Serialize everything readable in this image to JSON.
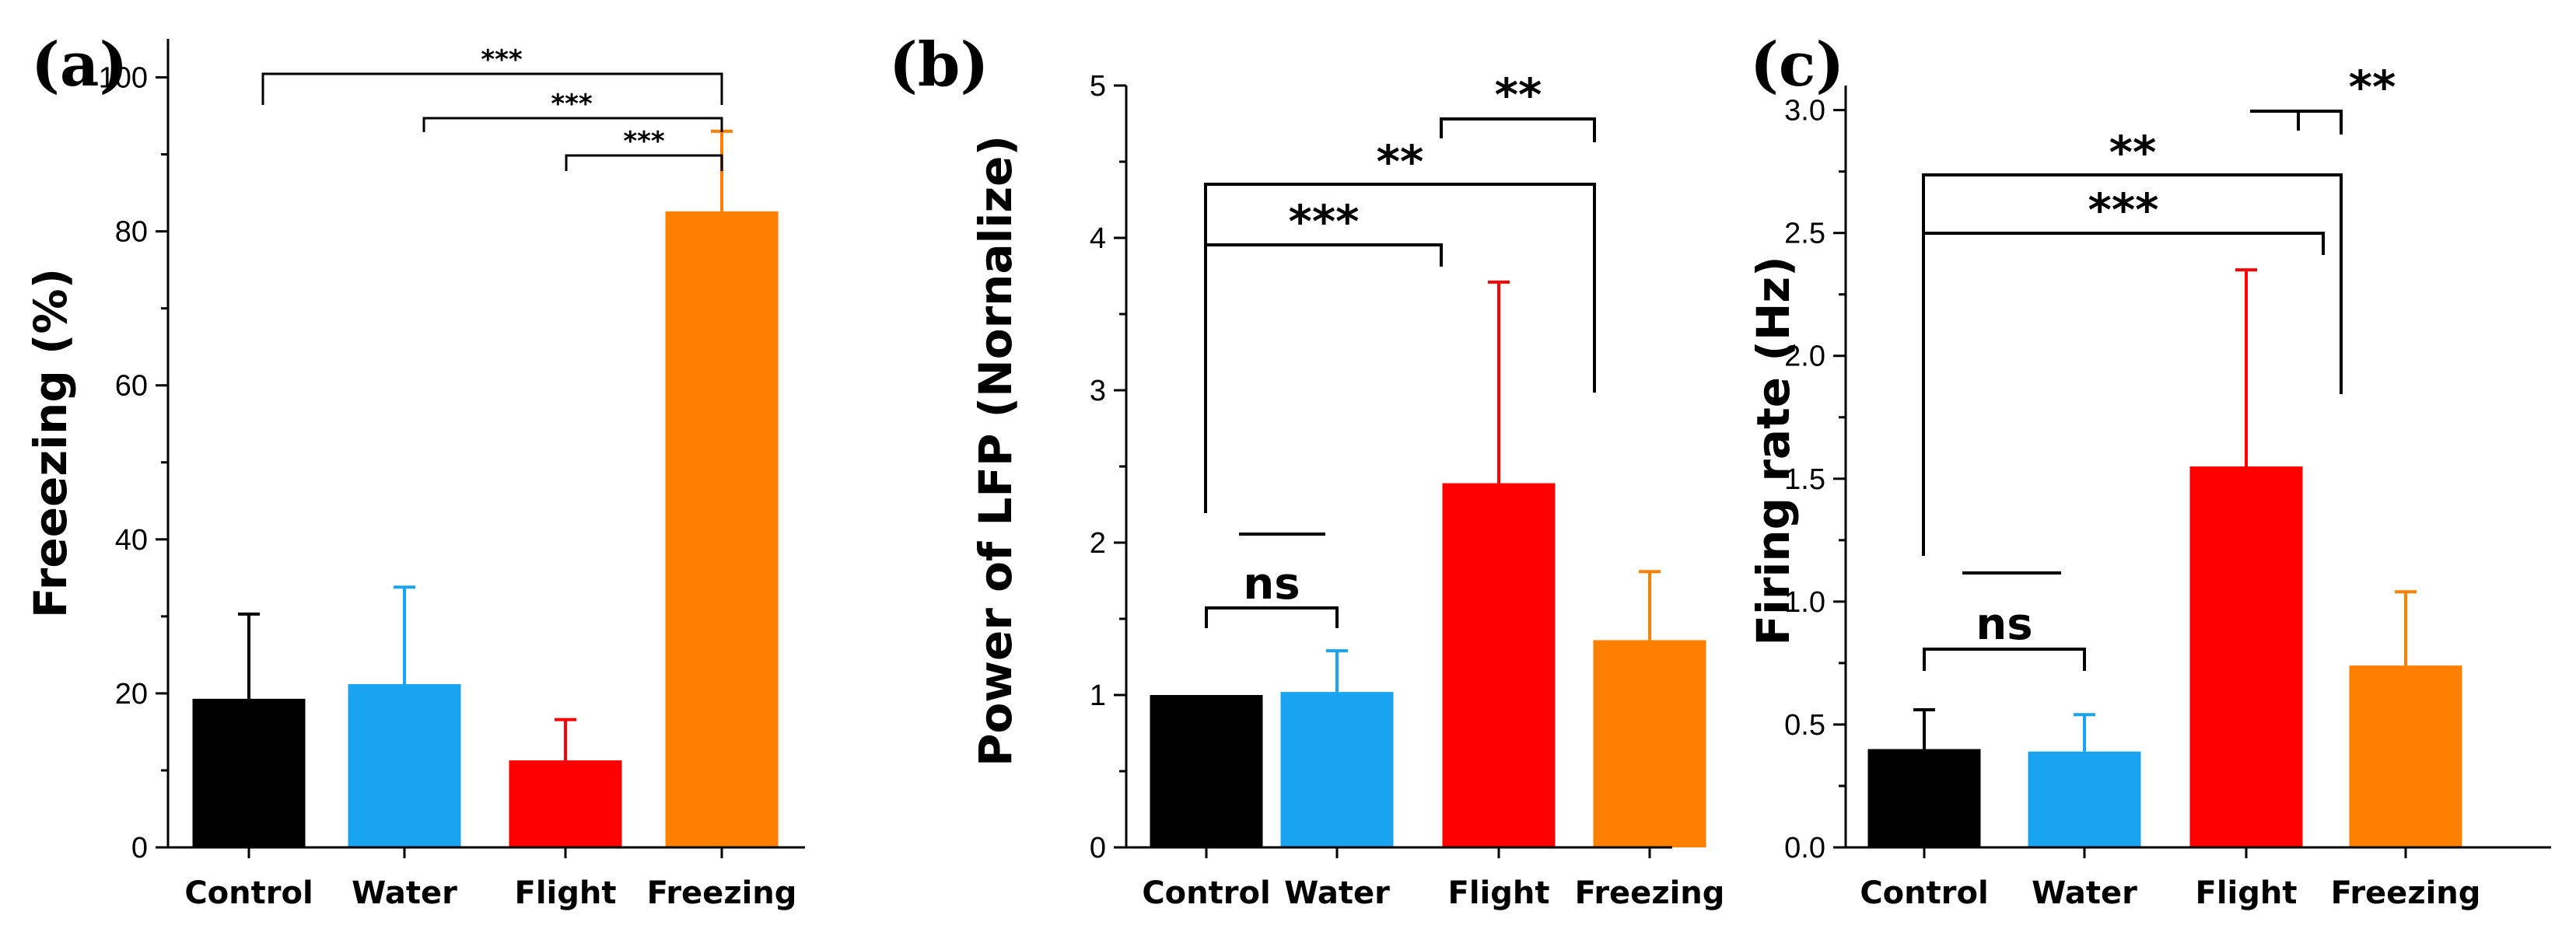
{
  "chart_data": [
    {
      "type": "bar",
      "panel_label": "(a)",
      "ylabel": "Freeezing (%)",
      "ylim": [
        0,
        105
      ],
      "yticks": [
        0,
        20,
        40,
        60,
        80,
        100
      ],
      "ytick_labels": [
        "0",
        "20",
        "40",
        "60",
        "80",
        "100"
      ],
      "categories": [
        "Control",
        "Water",
        "Flight",
        "Freezing"
      ],
      "values": [
        19.3,
        21.2,
        11.3,
        82.6
      ],
      "errors": [
        11.0,
        12.6,
        5.3,
        10.4
      ],
      "colors": [
        "#000000",
        "#1aa3f0",
        "#ff0000",
        "#ff8000"
      ],
      "significance": [
        {
          "from": "Control",
          "to": "Freezing",
          "label": "***"
        },
        {
          "from": "Water",
          "to": "Freezing",
          "label": "***"
        },
        {
          "from": "Flight",
          "to": "Freezing",
          "label": "***"
        }
      ]
    },
    {
      "type": "bar",
      "panel_label": "(b)",
      "ylabel": "Power of LFP  (Nornalize)",
      "ylim": [
        0,
        5
      ],
      "yticks": [
        0,
        1,
        2,
        3,
        4,
        5
      ],
      "ytick_labels": [
        "0",
        "1",
        "2",
        "3",
        "4",
        "5"
      ],
      "categories": [
        "Control",
        "Water",
        "Flight",
        "Freezing"
      ],
      "values": [
        1.0,
        1.02,
        2.39,
        1.36
      ],
      "errors": [
        0.0,
        0.27,
        1.32,
        0.45
      ],
      "colors": [
        "#000000",
        "#1aa3f0",
        "#ff0000",
        "#ff8000"
      ],
      "significance": [
        {
          "from": "Control",
          "to": "Water",
          "label": "ns"
        },
        {
          "from": "Control+Water",
          "to": "Flight",
          "label": "***"
        },
        {
          "from": "Control+Water",
          "to": "Freezing",
          "label": "**"
        },
        {
          "from": "Flight",
          "to": "Freezing",
          "label": "**"
        }
      ]
    },
    {
      "type": "bar",
      "panel_label": "(c)",
      "ylabel": "Firing rate (Hz)",
      "ylim": [
        0,
        3.1
      ],
      "yticks": [
        0,
        0.5,
        1,
        1.5,
        2,
        2.5,
        3
      ],
      "ytick_labels": [
        "0.0",
        "0.5",
        "1.0",
        "1.5",
        "2.0",
        "2.5",
        "3.0"
      ],
      "categories": [
        "Control",
        "Water",
        "Flight",
        "Freezing"
      ],
      "values": [
        0.4,
        0.39,
        1.55,
        0.74
      ],
      "errors": [
        0.16,
        0.15,
        0.8,
        0.3
      ],
      "colors": [
        "#000000",
        "#1aa3f0",
        "#ff0000",
        "#ff8000"
      ],
      "significance": [
        {
          "from": "Control",
          "to": "Water",
          "label": "ns"
        },
        {
          "from": "Control+Water",
          "to": "Flight",
          "label": "***"
        },
        {
          "from": "Control+Water",
          "to": "Freezing",
          "label": "**"
        },
        {
          "from": "Flight",
          "to": "Freezing",
          "label": "**"
        }
      ]
    }
  ]
}
